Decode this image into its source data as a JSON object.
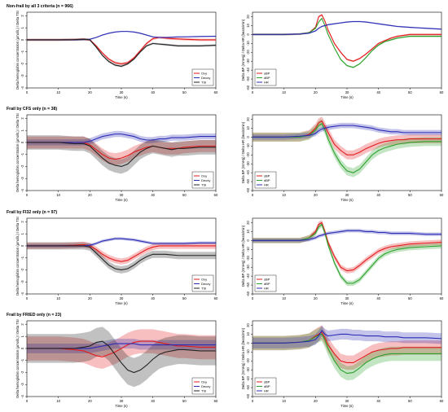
{
  "chart_data": [
    {
      "type": "line",
      "title": "Non-frail by all 3 criteria (n = 966)",
      "xlabel": "Time (s)",
      "ylabel": "Delta hemoglobin concentration (µmol/L) / Delta TSI",
      "xticks": [
        0,
        10,
        20,
        30,
        40,
        50,
        60
      ],
      "yticks": [
        -4,
        -3,
        -2,
        -1,
        0,
        1,
        2
      ],
      "ylim": [
        -4,
        2.3
      ],
      "xlim": [
        0,
        60
      ],
      "legend": "bottom-right",
      "x": [
        0,
        5,
        10,
        15,
        18,
        20,
        22,
        24,
        26,
        28,
        30,
        32,
        34,
        36,
        38,
        40,
        42,
        44,
        46,
        48,
        50,
        55,
        60
      ],
      "series": [
        {
          "name": "Oxy",
          "color": "#e31a1c",
          "values": [
            0,
            0,
            0,
            0.02,
            0.05,
            0,
            -0.5,
            -1.1,
            -1.6,
            -1.9,
            -2.0,
            -1.9,
            -1.5,
            -0.9,
            -0.3,
            0.1,
            0.2,
            0.15,
            0.1,
            0.08,
            0.05,
            0.0,
            0.0
          ],
          "band": 0.1
        },
        {
          "name": "Deoxy",
          "color": "#2b2bb5",
          "values": [
            0,
            0,
            0,
            0,
            0.02,
            0.05,
            0.2,
            0.4,
            0.55,
            0.65,
            0.7,
            0.7,
            0.65,
            0.55,
            0.4,
            0.25,
            0.2,
            0.2,
            0.22,
            0.25,
            0.25,
            0.28,
            0.3
          ],
          "band": 0.05
        },
        {
          "name": "TSI",
          "color": "#222222",
          "values": [
            0,
            0,
            0,
            0.02,
            0.05,
            0,
            -0.6,
            -1.3,
            -1.8,
            -2.1,
            -2.2,
            -2.0,
            -1.6,
            -1.0,
            -0.5,
            -0.3,
            -0.35,
            -0.4,
            -0.45,
            -0.5,
            -0.5,
            -0.5,
            -0.45
          ],
          "band": 0.08
        }
      ]
    },
    {
      "type": "line",
      "title": "",
      "xlabel": "Time (s)",
      "ylabel": "Delta BP (mmHg) / Delta HR (beats/min)",
      "xticks": [
        0,
        10,
        20,
        30,
        40,
        50,
        60
      ],
      "yticks": [
        -60,
        -50,
        -40,
        -30,
        -20,
        -10,
        0,
        10,
        20
      ],
      "ylim": [
        -60,
        25
      ],
      "xlim": [
        0,
        60
      ],
      "legend": "bottom-left",
      "x": [
        0,
        5,
        10,
        15,
        18,
        20,
        21,
        22,
        23,
        24,
        26,
        28,
        30,
        32,
        34,
        36,
        38,
        40,
        42,
        44,
        46,
        48,
        50,
        55,
        60
      ],
      "series": [
        {
          "name": "sBP",
          "color": "#e31a1c",
          "values": [
            0,
            0,
            0,
            0.5,
            2,
            8,
            20,
            22,
            15,
            5,
            -10,
            -20,
            -28,
            -30,
            -27,
            -22,
            -16,
            -10,
            -7,
            -4,
            -2,
            -1,
            0,
            0,
            0
          ],
          "band": 1
        },
        {
          "name": "dBP",
          "color": "#2ca02c",
          "values": [
            0,
            0,
            0,
            0.5,
            2,
            7,
            14,
            18,
            10,
            0,
            -15,
            -28,
            -35,
            -37,
            -33,
            -26,
            -18,
            -12,
            -8,
            -6,
            -4,
            -3,
            -2,
            -2,
            -2
          ],
          "band": 1
        },
        {
          "name": "HR",
          "color": "#2b2bb5",
          "values": [
            0,
            0,
            0,
            0.5,
            1.5,
            4,
            7,
            9,
            10,
            11,
            12,
            13,
            14,
            14.5,
            14.5,
            14,
            13,
            12,
            11,
            10,
            9,
            8.5,
            8,
            7,
            6
          ],
          "band": 0.8
        }
      ]
    },
    {
      "type": "line",
      "title": "Frail by CFS only (n = 38)",
      "xlabel": "Time (s)",
      "ylabel": "Delta hemoglobin concentration (µmol/L) / Delta TSI",
      "xticks": [
        0,
        10,
        20,
        30,
        40,
        50,
        60
      ],
      "yticks": [
        -4,
        -3,
        -2,
        -1,
        0,
        1,
        2
      ],
      "ylim": [
        -4,
        2.3
      ],
      "xlim": [
        0,
        60
      ],
      "legend": "bottom-right",
      "x": [
        0,
        5,
        10,
        15,
        18,
        20,
        22,
        24,
        26,
        28,
        30,
        32,
        34,
        36,
        38,
        40,
        42,
        44,
        46,
        48,
        50,
        55,
        60
      ],
      "series": [
        {
          "name": "Oxy",
          "color": "#e31a1c",
          "values": [
            0,
            0,
            0,
            0,
            0,
            -0.2,
            -0.6,
            -1.0,
            -1.3,
            -1.4,
            -1.3,
            -1.1,
            -0.8,
            -0.6,
            -0.4,
            -0.3,
            -0.4,
            -0.5,
            -0.5,
            -0.5,
            -0.4,
            -0.3,
            -0.3
          ],
          "band": 0.5
        },
        {
          "name": "Deoxy",
          "color": "#2b2bb5",
          "values": [
            0,
            0,
            0,
            0,
            0,
            0.1,
            0.3,
            0.5,
            0.6,
            0.7,
            0.7,
            0.6,
            0.5,
            0.3,
            0.2,
            0.2,
            0.3,
            0.3,
            0.4,
            0.4,
            0.4,
            0.5,
            0.5
          ],
          "band": 0.25
        },
        {
          "name": "TSI",
          "color": "#222222",
          "values": [
            0,
            0,
            0,
            -0.1,
            -0.1,
            -0.3,
            -0.8,
            -1.3,
            -1.7,
            -1.9,
            -2.0,
            -1.8,
            -1.3,
            -0.8,
            -0.5,
            -0.3,
            -0.4,
            -0.5,
            -0.6,
            -0.5,
            -0.5,
            -0.4,
            -0.4
          ],
          "band": 0.6
        }
      ]
    },
    {
      "type": "line",
      "title": "",
      "xlabel": "Time (s)",
      "ylabel": "Delta BP (mmHg) / Delta HR (beats/min)",
      "xticks": [
        0,
        10,
        20,
        30,
        40,
        50,
        60
      ],
      "yticks": [
        -60,
        -50,
        -40,
        -30,
        -20,
        -10,
        0,
        10,
        20
      ],
      "ylim": [
        -60,
        25
      ],
      "xlim": [
        0,
        60
      ],
      "legend": "bottom-left",
      "x": [
        0,
        5,
        10,
        15,
        18,
        20,
        21,
        22,
        23,
        24,
        26,
        28,
        30,
        32,
        34,
        36,
        38,
        40,
        42,
        44,
        46,
        48,
        50,
        55,
        60
      ],
      "series": [
        {
          "name": "sBP",
          "color": "#e31a1c",
          "values": [
            0,
            0,
            0,
            0,
            3,
            10,
            16,
            18,
            12,
            5,
            -8,
            -15,
            -20,
            -20,
            -17,
            -13,
            -10,
            -7,
            -5,
            -4,
            -3,
            -3,
            -2,
            -2,
            -2
          ],
          "band": 5
        },
        {
          "name": "dBP",
          "color": "#2ca02c",
          "values": [
            0,
            0,
            0,
            0,
            2,
            8,
            13,
            15,
            8,
            -2,
            -18,
            -30,
            -38,
            -40,
            -36,
            -28,
            -20,
            -15,
            -12,
            -10,
            -8,
            -7,
            -6,
            -5,
            -5
          ],
          "band": 5
        },
        {
          "name": "HR",
          "color": "#2b2bb5",
          "values": [
            0,
            0,
            0,
            1,
            2,
            4,
            7,
            9,
            10,
            11,
            12,
            13,
            13,
            13,
            12,
            11,
            10,
            8,
            7,
            6,
            6,
            5,
            5,
            5,
            5
          ],
          "band": 3
        }
      ]
    },
    {
      "type": "line",
      "title": "Frail by FI32 only (n = 97)",
      "xlabel": "Time (s)",
      "ylabel": "Delta hemoglobin concentration (µmol/L) / Delta TSI",
      "xticks": [
        0,
        10,
        20,
        30,
        40,
        50,
        60
      ],
      "yticks": [
        -4,
        -3,
        -2,
        -1,
        0,
        1,
        2
      ],
      "ylim": [
        -4,
        2.3
      ],
      "xlim": [
        0,
        60
      ],
      "legend": "bottom-right",
      "x": [
        0,
        5,
        10,
        15,
        18,
        20,
        22,
        24,
        26,
        28,
        30,
        32,
        34,
        36,
        38,
        40,
        42,
        44,
        46,
        48,
        50,
        55,
        60
      ],
      "series": [
        {
          "name": "Oxy",
          "color": "#e31a1c",
          "values": [
            0,
            0,
            0,
            0.05,
            0.1,
            0,
            -0.3,
            -0.7,
            -1.0,
            -1.2,
            -1.3,
            -1.2,
            -0.9,
            -0.6,
            -0.3,
            -0.1,
            0,
            0,
            0,
            0,
            0,
            0,
            0
          ],
          "band": 0.25
        },
        {
          "name": "Deoxy",
          "color": "#2b2bb5",
          "values": [
            0,
            0,
            0,
            0,
            0,
            0.05,
            0.2,
            0.4,
            0.5,
            0.6,
            0.6,
            0.55,
            0.5,
            0.4,
            0.3,
            0.2,
            0.2,
            0.2,
            0.2,
            0.2,
            0.2,
            0.25,
            0.25
          ],
          "band": 0.12
        },
        {
          "name": "TSI",
          "color": "#222222",
          "values": [
            0,
            0,
            0,
            0,
            0,
            -0.1,
            -0.6,
            -1.1,
            -1.6,
            -1.9,
            -2.0,
            -1.9,
            -1.6,
            -1.2,
            -0.9,
            -0.7,
            -0.7,
            -0.7,
            -0.75,
            -0.8,
            -0.8,
            -0.8,
            -0.8
          ],
          "band": 0.3
        }
      ]
    },
    {
      "type": "line",
      "title": "",
      "xlabel": "Time (s)",
      "ylabel": "Delta BP (mmHg) / Delta HR (beats/min)",
      "xticks": [
        0,
        10,
        20,
        30,
        40,
        50,
        60
      ],
      "yticks": [
        -60,
        -50,
        -40,
        -30,
        -20,
        -10,
        0,
        10,
        20
      ],
      "ylim": [
        -60,
        25
      ],
      "xlim": [
        0,
        60
      ],
      "legend": "bottom-left",
      "x": [
        0,
        5,
        10,
        15,
        18,
        20,
        21,
        22,
        23,
        24,
        26,
        28,
        30,
        32,
        34,
        36,
        38,
        40,
        42,
        44,
        46,
        48,
        50,
        55,
        60
      ],
      "series": [
        {
          "name": "sBP",
          "color": "#e31a1c",
          "values": [
            0,
            0,
            0,
            0,
            3,
            10,
            18,
            20,
            10,
            -2,
            -18,
            -30,
            -34,
            -33,
            -28,
            -22,
            -17,
            -12,
            -9,
            -7,
            -6,
            -5,
            -4,
            -3,
            -2
          ],
          "band": 3
        },
        {
          "name": "dBP",
          "color": "#2ca02c",
          "values": [
            0,
            0,
            0,
            0,
            3,
            8,
            15,
            18,
            8,
            -5,
            -25,
            -40,
            -48,
            -48,
            -44,
            -36,
            -28,
            -20,
            -15,
            -12,
            -10,
            -9,
            -8,
            -7,
            -6
          ],
          "band": 3
        },
        {
          "name": "HR",
          "color": "#2b2bb5",
          "values": [
            0,
            0,
            0,
            0,
            1,
            3,
            5,
            6,
            7,
            8,
            9,
            10,
            11,
            11,
            11,
            10,
            10,
            9,
            9,
            8,
            8,
            8,
            8,
            7,
            7
          ],
          "band": 2
        }
      ]
    },
    {
      "type": "line",
      "title": "Frail by FRIED only (n = 23)",
      "xlabel": "Time (s)",
      "ylabel": "Delta hemoglobin concentration (µmol/L) / Delta TSI",
      "xticks": [
        0,
        10,
        20,
        30,
        40,
        50,
        60
      ],
      "yticks": [
        -4,
        -3,
        -2,
        -1,
        0,
        1,
        2
      ],
      "ylim": [
        -4,
        2.3
      ],
      "xlim": [
        0,
        60
      ],
      "legend": "bottom-right",
      "x": [
        0,
        5,
        10,
        15,
        18,
        20,
        22,
        24,
        26,
        28,
        30,
        32,
        34,
        36,
        38,
        40,
        42,
        44,
        46,
        48,
        50,
        55,
        60
      ],
      "series": [
        {
          "name": "Oxy",
          "color": "#e31a1c",
          "values": [
            0,
            0,
            0,
            -0.1,
            -0.2,
            -0.4,
            -0.6,
            -0.7,
            -0.5,
            -0.3,
            0,
            0.3,
            0.5,
            0.6,
            0.6,
            0.6,
            0.5,
            0.4,
            0.3,
            0.2,
            0.2,
            0.1,
            0.1
          ],
          "band": 1.0
        },
        {
          "name": "Deoxy",
          "color": "#2b2bb5",
          "values": [
            0,
            0,
            0,
            0,
            0,
            0,
            0.1,
            0.2,
            0.3,
            0.4,
            0.4,
            0.4,
            0.4,
            0.3,
            0.3,
            0.3,
            0.3,
            0.3,
            0.3,
            0.3,
            0.3,
            0.3,
            0.3
          ],
          "band": 0.4
        },
        {
          "name": "TSI",
          "color": "#222222",
          "values": [
            0,
            0,
            0,
            0,
            0.1,
            0.2,
            0.5,
            0.6,
            0.2,
            -0.5,
            -1.2,
            -1.8,
            -2.0,
            -1.8,
            -1.4,
            -0.9,
            -0.5,
            -0.3,
            -0.2,
            -0.1,
            -0.1,
            -0.2,
            -0.2
          ],
          "band": 1.2
        }
      ]
    },
    {
      "type": "line",
      "title": "",
      "xlabel": "Time (s)",
      "ylabel": "Delta BP (mmHg) / Delta HR (beats/min)",
      "xticks": [
        0,
        10,
        20,
        30,
        40,
        50,
        60
      ],
      "yticks": [
        -60,
        -50,
        -40,
        -30,
        -20,
        -10,
        0,
        10,
        20
      ],
      "ylim": [
        -60,
        25
      ],
      "xlim": [
        0,
        60
      ],
      "legend": "bottom-left",
      "x": [
        0,
        5,
        10,
        15,
        18,
        20,
        21,
        22,
        23,
        24,
        26,
        28,
        30,
        32,
        34,
        36,
        38,
        40,
        42,
        44,
        46,
        48,
        50,
        55,
        60
      ],
      "series": [
        {
          "name": "sBP",
          "color": "#e31a1c",
          "values": [
            0,
            0,
            0,
            1,
            3,
            8,
            10,
            12,
            6,
            -2,
            -12,
            -20,
            -22,
            -22,
            -18,
            -14,
            -10,
            -8,
            -7,
            -6,
            -6,
            -5,
            -5,
            -5,
            -5
          ],
          "band": 8
        },
        {
          "name": "dBP",
          "color": "#2ca02c",
          "values": [
            0,
            0,
            0,
            1,
            3,
            7,
            9,
            10,
            3,
            -6,
            -20,
            -30,
            -34,
            -33,
            -28,
            -22,
            -18,
            -15,
            -13,
            -12,
            -12,
            -12,
            -12,
            -12,
            -12
          ],
          "band": 8
        },
        {
          "name": "HR",
          "color": "#2b2bb5",
          "values": [
            0,
            0,
            0,
            1,
            2,
            4,
            8,
            14,
            10,
            8,
            9,
            10,
            10,
            9,
            9,
            8,
            8,
            8,
            7,
            7,
            7,
            6,
            6,
            6,
            5
          ],
          "band": 6
        }
      ]
    }
  ]
}
